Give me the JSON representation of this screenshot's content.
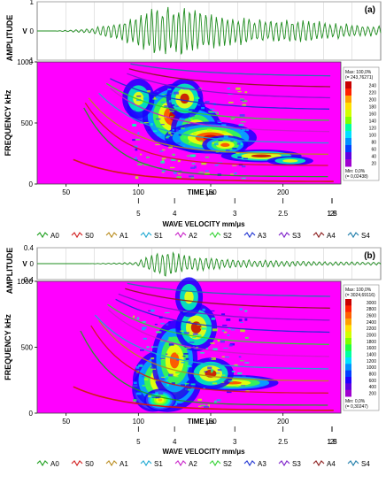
{
  "figure": {
    "legend_items": [
      {
        "label": "A0",
        "color": "#1a9e1a"
      },
      {
        "label": "S0",
        "color": "#d11a1a"
      },
      {
        "label": "A1",
        "color": "#b88a1a"
      },
      {
        "label": "S1",
        "color": "#1aa7d1"
      },
      {
        "label": "A2",
        "color": "#c81ec8"
      },
      {
        "label": "S2",
        "color": "#2fd12f"
      },
      {
        "label": "A3",
        "color": "#1a2fd1"
      },
      {
        "label": "S3",
        "color": "#7a1ac8"
      },
      {
        "label": "A4",
        "color": "#8a1a1a"
      },
      {
        "label": "S4",
        "color": "#1a7aa8"
      }
    ],
    "colors": {
      "background_magenta": "#ff00ff",
      "waveform_green": "#1e8c1e"
    }
  },
  "panels": [
    {
      "panel_label": "(a)",
      "amp_label": "AMPLITUDE",
      "amp_unit": "V",
      "amp_ticks": [
        "1",
        "0",
        "-1"
      ],
      "freq_label": "FREQUENCY  kHz",
      "freq_ticks": [
        "1000",
        "500",
        "0"
      ],
      "time_label": "TIME  μs",
      "time_ticks": [
        "50",
        "100",
        "150",
        "200"
      ],
      "vel_label": "WAVE VELOCITY  mm/μs",
      "vel_ticks": [
        "5",
        "4",
        "3",
        "2.5",
        "2",
        "1.8",
        "1.5"
      ],
      "colorbar": {
        "max_line1": "Max: 100,0%",
        "max_line2": "(= 243,76271)",
        "ticks": [
          "240",
          "220",
          "200",
          "180",
          "160",
          "140",
          "120",
          "100",
          "80",
          "60",
          "40",
          "20"
        ],
        "min_line1": "Min: 0,0%",
        "min_line2": "(= 0,02438)"
      }
    },
    {
      "panel_label": "(b)",
      "amp_label": "AMPLITUDE",
      "amp_unit": "V",
      "amp_ticks": [
        "0.4",
        "0",
        "-0.4"
      ],
      "freq_label": "FREQUENCY  kHz",
      "freq_ticks": [
        "1000",
        "500",
        "0"
      ],
      "time_label": "TIME  μs",
      "time_ticks": [
        "50",
        "100",
        "150",
        "200"
      ],
      "vel_label": "WAVE VELOCITY  mm/μs",
      "vel_ticks": [
        "5",
        "4",
        "3",
        "2.5",
        "2",
        "1.8",
        "1.5"
      ],
      "colorbar": {
        "max_line1": "Max: 100,0%",
        "max_line2": "(= 3024,69116)",
        "ticks": [
          "3000",
          "2800",
          "2600",
          "2400",
          "2200",
          "2000",
          "1800",
          "1600",
          "1400",
          "1200",
          "1000",
          "800",
          "600",
          "400",
          "200"
        ],
        "min_line1": "Min: 0,0%",
        "min_line2": "(= 0,30247)"
      }
    }
  ],
  "chart_data": [
    {
      "type": "line",
      "panel": "(a)",
      "ylabel": "AMPLITUDE",
      "yunit": "V",
      "ylim": [
        -1,
        1
      ],
      "xlabel": "TIME  μs",
      "xlim": [
        30,
        240
      ],
      "x": [
        30,
        40,
        50,
        60,
        70,
        80,
        90,
        100,
        110,
        120,
        130,
        140,
        150,
        160,
        170,
        180,
        190,
        200,
        210,
        220,
        230,
        240
      ],
      "series": [
        {
          "values": [
            0.0,
            0.0,
            0.03,
            0.08,
            0.2,
            0.35,
            0.55,
            0.8,
            1.0,
            0.85,
            0.75,
            0.6,
            0.55,
            0.5,
            0.45,
            0.42,
            0.4,
            0.35,
            0.3,
            0.25,
            0.2,
            0.18
          ]
        }
      ]
    },
    {
      "type": "heatmap",
      "panel": "(a)",
      "ylabel": "FREQUENCY  kHz",
      "xlabel": "TIME  μs",
      "xlim": [
        30,
        240
      ],
      "ylim": [
        0,
        1000
      ],
      "dispersion_overlay": true,
      "velocity_axis": {
        "label": "WAVE VELOCITY  mm/μs",
        "ticks": [
          5,
          4,
          3,
          2.5,
          2,
          1.8,
          1.5
        ]
      },
      "colorbar_range": [
        0.02438,
        243.76271
      ]
    },
    {
      "type": "line",
      "panel": "(b)",
      "ylabel": "AMPLITUDE",
      "yunit": "V",
      "ylim": [
        -0.4,
        0.4
      ],
      "xlabel": "TIME  μs",
      "xlim": [
        30,
        240
      ],
      "x": [
        30,
        40,
        50,
        60,
        70,
        80,
        90,
        100,
        110,
        120,
        130,
        140,
        150,
        160,
        170,
        180,
        190,
        200,
        210,
        220,
        230,
        240
      ],
      "series": [
        {
          "values": [
            0.0,
            0.0,
            0.0,
            0.0,
            0.01,
            0.02,
            0.04,
            0.25,
            0.4,
            0.22,
            0.2,
            0.14,
            0.12,
            0.1,
            0.09,
            0.08,
            0.07,
            0.06,
            0.05,
            0.05,
            0.04,
            0.04
          ]
        }
      ]
    },
    {
      "type": "heatmap",
      "panel": "(b)",
      "ylabel": "FREQUENCY  kHz",
      "xlabel": "TIME  μs",
      "xlim": [
        30,
        240
      ],
      "ylim": [
        0,
        1000
      ],
      "dispersion_overlay": true,
      "velocity_axis": {
        "label": "WAVE VELOCITY  mm/μs",
        "ticks": [
          5,
          4,
          3,
          2.5,
          2,
          1.8,
          1.5
        ]
      },
      "colorbar_range": [
        0.30247,
        3024.69116
      ]
    }
  ]
}
